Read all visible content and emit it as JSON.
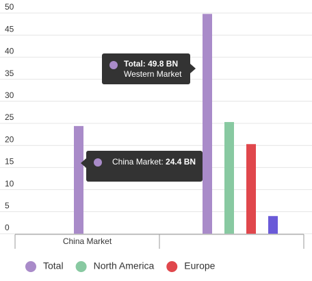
{
  "chart_data": {
    "type": "bar",
    "categories": [
      "China Market",
      null
    ],
    "series": [
      {
        "name": "Total",
        "color": "#a98bc9",
        "values": [
          24.4,
          49.8
        ]
      },
      {
        "name": "North America",
        "color": "#88c9a1",
        "values": [
          null,
          25.3
        ]
      },
      {
        "name": "Europe",
        "color": "#e0474c",
        "values": [
          null,
          20.3
        ]
      },
      {
        "name": null,
        "color": "#6a5ad8",
        "values": [
          null,
          4
        ]
      }
    ],
    "ylim": [
      0,
      50
    ],
    "yticks": [
      0,
      5,
      10,
      15,
      20,
      25,
      30,
      35,
      40,
      45,
      50
    ],
    "grid": true,
    "legend": "bottom",
    "tooltips": [
      {
        "title": "Total: 49.8 BN",
        "subtitle": "Western Market"
      },
      {
        "title": "China Market:",
        "value": "24.4 BN"
      }
    ]
  }
}
